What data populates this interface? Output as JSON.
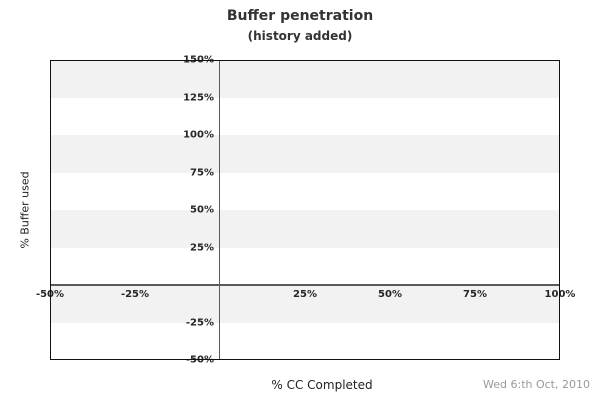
{
  "header": {
    "title": "Buffer penetration",
    "subtitle": "(history added)"
  },
  "axes": {
    "y_title": "% Buffer used",
    "x_title": "% CC Completed"
  },
  "footer": {
    "date": "Wed 6:th Oct, 2010"
  },
  "chart_data": {
    "type": "line",
    "title": "Buffer penetration",
    "subtitle": "(history added)",
    "xlabel": "% CC Completed",
    "ylabel": "% Buffer used",
    "xlim": [
      -50,
      100
    ],
    "ylim": [
      -50,
      150
    ],
    "x_tick_step": 25,
    "y_tick_step": 25,
    "x_ticks": [
      {
        "value": -50,
        "label": "-50%"
      },
      {
        "value": -25,
        "label": "-25%"
      },
      {
        "value": 25,
        "label": "25%"
      },
      {
        "value": 50,
        "label": "50%"
      },
      {
        "value": 75,
        "label": "75%"
      },
      {
        "value": 100,
        "label": "100%"
      }
    ],
    "y_ticks": [
      {
        "value": 150,
        "label": "150%"
      },
      {
        "value": 125,
        "label": "125%"
      },
      {
        "value": 100,
        "label": "100%"
      },
      {
        "value": 75,
        "label": "75%"
      },
      {
        "value": 50,
        "label": "50%"
      },
      {
        "value": 25,
        "label": "25%"
      },
      {
        "value": -25,
        "label": "-25%"
      },
      {
        "value": -50,
        "label": "-50%"
      }
    ],
    "bands": [
      {
        "from": 150,
        "to": 125,
        "fill": "#f2f2f2"
      },
      {
        "from": 125,
        "to": 100,
        "fill": "#ffffff"
      },
      {
        "from": 100,
        "to": 75,
        "fill": "#f2f2f2"
      },
      {
        "from": 75,
        "to": 50,
        "fill": "#ffffff"
      },
      {
        "from": 50,
        "to": 25,
        "fill": "#f2f2f2"
      },
      {
        "from": 25,
        "to": 0,
        "fill": "#ffffff"
      },
      {
        "from": 0,
        "to": -25,
        "fill": "#f2f2f2"
      },
      {
        "from": -25,
        "to": -50,
        "fill": "#ffffff"
      }
    ],
    "zero_lines": {
      "x": 0,
      "y": 0
    },
    "series": [],
    "annotations": [
      {
        "text": "Wed 6:th Oct, 2010",
        "position": "bottom-right"
      }
    ],
    "legend_position": "none",
    "colors": {
      "background": "#ffffff",
      "band_gray": "#f2f2f2",
      "plot_border": "#111111",
      "zero_line": "#5a5a5a",
      "tick_text": "#262626",
      "title_text": "#333333",
      "axis_title_text": "#222222",
      "date_text": "#999999"
    }
  }
}
